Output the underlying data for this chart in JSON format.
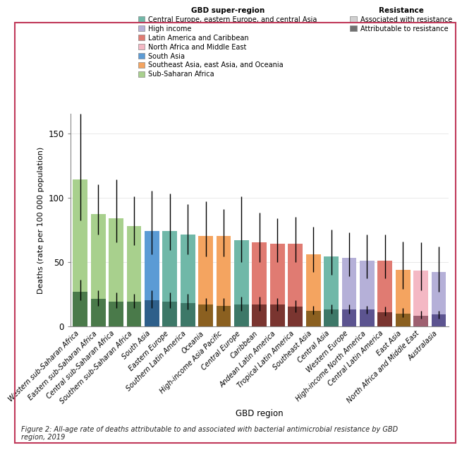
{
  "regions": [
    "Western sub-Saharan Africa",
    "Eastern sub-Saharan Africa",
    "Central sub-Saharan Africa",
    "Southern sub-Saharan Africa",
    "South Asia",
    "Eastern Europe",
    "Southern Latin America",
    "Oceania",
    "High-income Asia Pacific",
    "Central Europe",
    "Caribbean",
    "Andean Latin America",
    "Tropical Latin America",
    "Southeast Asia",
    "Central Asia",
    "Western Europe",
    "High-income North America",
    "Central Latin America",
    "East Asia",
    "North Africa and Middle East",
    "Australasia"
  ],
  "associated_values": [
    114.0,
    87.0,
    84.0,
    78.0,
    74.0,
    74.0,
    71.0,
    70.0,
    70.0,
    67.0,
    65.0,
    64.0,
    64.0,
    56.0,
    54.0,
    53.0,
    51.0,
    51.0,
    44.0,
    43.0,
    42.0
  ],
  "attributable_values": [
    27.0,
    21.0,
    19.0,
    19.0,
    20.0,
    19.0,
    18.0,
    17.0,
    16.0,
    17.0,
    17.0,
    17.0,
    15.0,
    12.0,
    13.0,
    13.0,
    13.0,
    11.0,
    10.0,
    8.0,
    9.0
  ],
  "associated_ci_upper": [
    165.0,
    110.0,
    114.0,
    101.0,
    105.0,
    103.0,
    95.0,
    97.0,
    91.0,
    101.0,
    88.0,
    84.0,
    85.0,
    77.0,
    75.0,
    73.0,
    71.0,
    71.0,
    66.0,
    65.0,
    62.0
  ],
  "associated_ci_lower": [
    82.0,
    71.0,
    65.0,
    63.0,
    56.0,
    59.0,
    56.0,
    54.0,
    54.0,
    50.0,
    50.0,
    50.0,
    50.0,
    42.0,
    40.0,
    39.0,
    37.0,
    37.0,
    29.0,
    28.0,
    27.0
  ],
  "attributable_ci_upper": [
    36.0,
    28.0,
    26.0,
    25.0,
    28.0,
    26.0,
    25.0,
    22.0,
    22.0,
    23.0,
    23.0,
    22.0,
    20.0,
    16.0,
    17.0,
    17.0,
    16.0,
    15.0,
    14.0,
    12.0,
    12.0
  ],
  "attributable_ci_lower": [
    20.0,
    16.0,
    14.0,
    14.0,
    14.0,
    14.0,
    13.0,
    12.0,
    12.0,
    12.0,
    12.0,
    12.0,
    11.0,
    9.0,
    10.0,
    10.0,
    10.0,
    8.0,
    7.0,
    6.0,
    6.0
  ],
  "super_region_colors": [
    "#a8d08d",
    "#a8d08d",
    "#a8d08d",
    "#a8d08d",
    "#5b9bd5",
    "#70b8a8",
    "#70b8a8",
    "#f4a460",
    "#f4a460",
    "#70b8a8",
    "#e07b72",
    "#e07b72",
    "#e07b72",
    "#f4a460",
    "#70b8a8",
    "#b5b0d8",
    "#b5b0d8",
    "#e07b72",
    "#f4a460",
    "#f4b8c4",
    "#b5b0d8"
  ],
  "dark_bar_colors": [
    "#4a7a4a",
    "#4a7a4a",
    "#4a7a4a",
    "#4a7a4a",
    "#2e5f8a",
    "#3d7868",
    "#3d7868",
    "#8b6020",
    "#8b6020",
    "#3d7868",
    "#7a3530",
    "#7a3530",
    "#7a3530",
    "#8b6020",
    "#3d7868",
    "#5c5490",
    "#5c5490",
    "#7a3530",
    "#8b6020",
    "#9e6070",
    "#5c5490"
  ],
  "super_region_legend": {
    "Central Europe, eastern Europe, and central Asia": "#70b8a8",
    "High income": "#b5b0d8",
    "Latin America and Caribbean": "#e07b72",
    "North Africa and Middle East": "#f4b8c4",
    "South Asia": "#5b9bd5",
    "Southeast Asia, east Asia, and Oceania": "#f4a460",
    "Sub-Saharan Africa": "#a8d08d"
  },
  "ylabel": "Deaths (rate per 100 000 population)",
  "xlabel": "GBD region",
  "ylim": [
    0,
    165
  ],
  "yticks": [
    0,
    50,
    100,
    150
  ],
  "figure_caption": "Figure 2: All-age rate of deaths attributable to and associated with bacterial antimicrobial resistance by GBD\nregion, 2019",
  "border_color": "#c0395a",
  "assoc_legend_color": "#d0d0d0",
  "attr_legend_color": "#707070"
}
